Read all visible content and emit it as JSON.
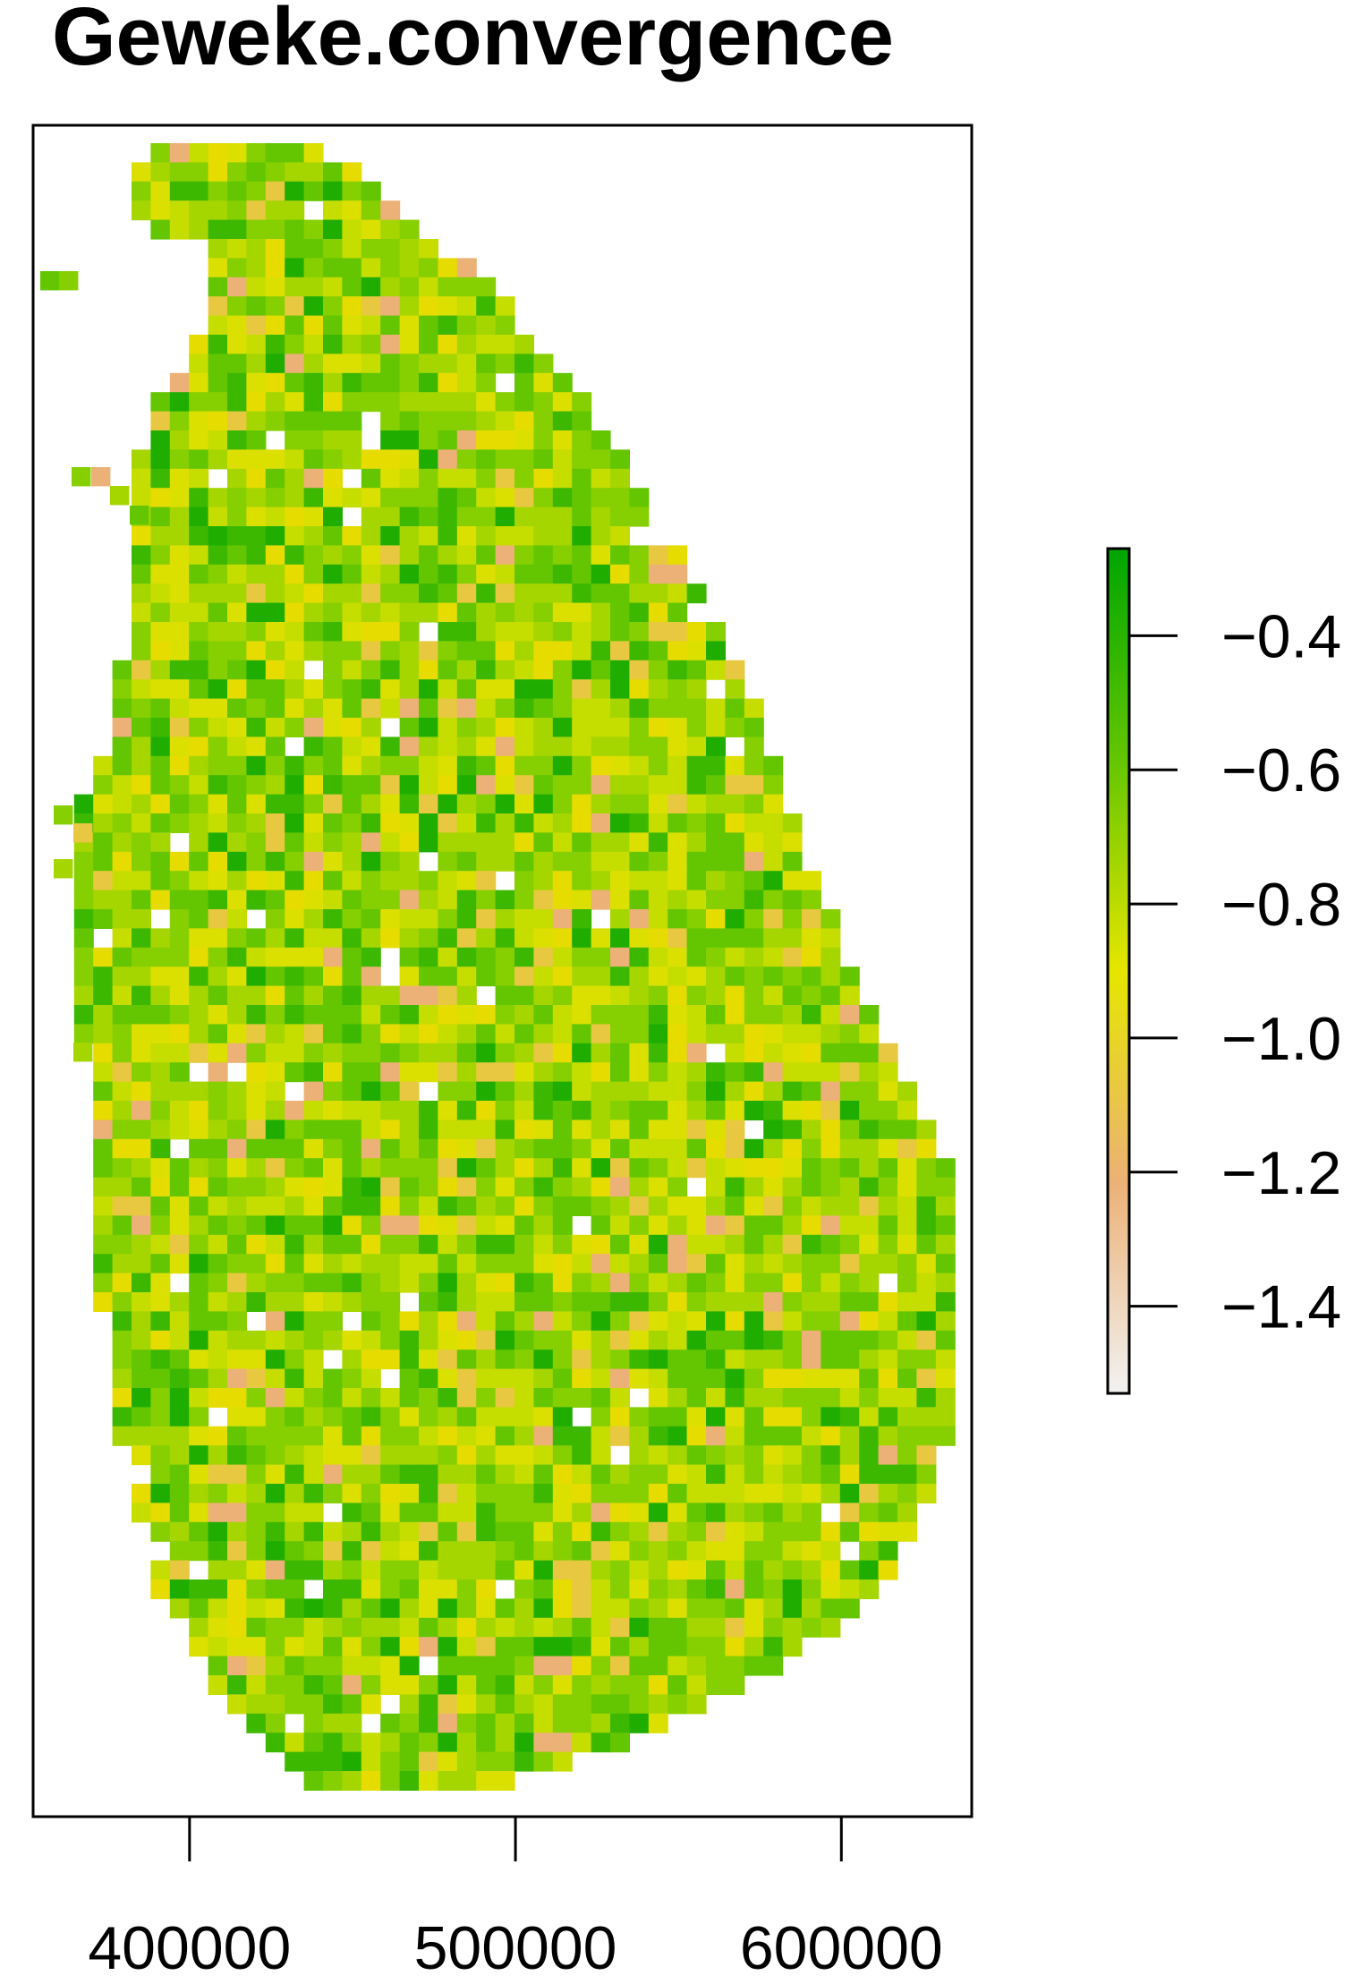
{
  "chart_data": {
    "type": "heatmap",
    "title": "Geweke.convergence",
    "xlabel": "",
    "ylabel": "",
    "x_ticks": [
      400000,
      500000,
      600000
    ],
    "x_tick_labels": [
      "400000",
      "500000",
      "600000"
    ],
    "xlim": [
      352000,
      640000
    ],
    "legend": {
      "position": "right",
      "range": [
        -1.53,
        -0.27
      ],
      "ticks": [
        -0.4,
        -0.6,
        -0.8,
        -1.0,
        -1.2,
        -1.4
      ],
      "tick_labels": [
        "−0.4",
        "−0.6",
        "−0.8",
        "−1.0",
        "−1.2",
        "−1.4"
      ]
    },
    "colors": {
      "max": "#00A600",
      "high": "#63C600",
      "mid": "#E6E600",
      "low": "#ECB176",
      "min": "#F2F2F2"
    },
    "grid": false,
    "note_values": "raster cells approximately -1.5 to -0.3, most around -0.7 to -0.9"
  }
}
